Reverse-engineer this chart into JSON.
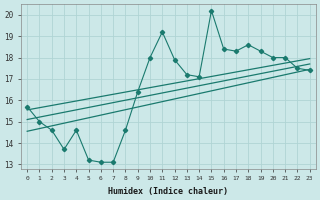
{
  "x": [
    0,
    1,
    2,
    3,
    4,
    5,
    6,
    7,
    8,
    9,
    10,
    11,
    12,
    13,
    14,
    15,
    16,
    17,
    18,
    19,
    20,
    21,
    22,
    23
  ],
  "y": [
    15.7,
    15.0,
    14.6,
    13.7,
    14.6,
    13.2,
    13.1,
    13.1,
    14.6,
    16.4,
    18.0,
    19.2,
    17.9,
    17.2,
    17.1,
    20.2,
    18.4,
    18.3,
    18.6,
    18.3,
    18.0,
    18.0,
    17.5,
    17.4
  ],
  "line_color": "#1a7a6e",
  "bg_color": "#cce8e8",
  "grid_color": "#b0d4d4",
  "xlabel": "Humidex (Indice chaleur)",
  "xlim": [
    -0.5,
    23.5
  ],
  "ylim": [
    12.8,
    20.5
  ],
  "yticks": [
    13,
    14,
    15,
    16,
    17,
    18,
    19,
    20
  ],
  "xticks": [
    0,
    1,
    2,
    3,
    4,
    5,
    6,
    7,
    8,
    9,
    10,
    11,
    12,
    13,
    14,
    15,
    16,
    17,
    18,
    19,
    20,
    21,
    22,
    23
  ],
  "xtick_labels": [
    "0",
    "1",
    "2",
    "3",
    "4",
    "5",
    "6",
    "7",
    "8",
    "9",
    "10",
    "11",
    "12",
    "13",
    "14",
    "15",
    "16",
    "17",
    "18",
    "19",
    "20",
    "21",
    "22",
    "23"
  ],
  "trend_lower_start": 14.55,
  "trend_lower_end": 17.45,
  "trend_mid_start": 15.1,
  "trend_mid_end": 17.7,
  "trend_upper_start": 15.55,
  "trend_upper_end": 17.95
}
